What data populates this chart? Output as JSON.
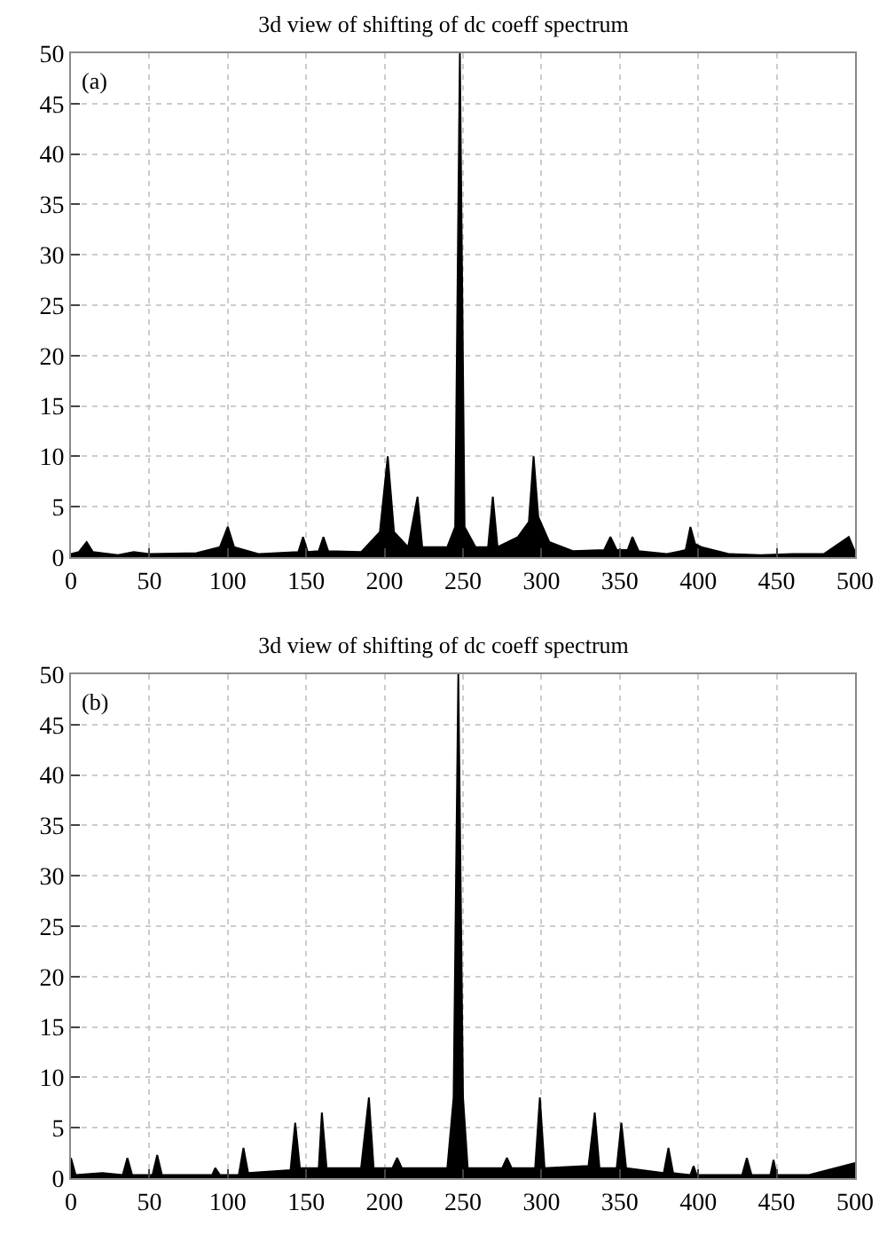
{
  "chart_data": [
    {
      "type": "area",
      "title": "3d view of shifting of dc coeff spectrum",
      "annotations": [
        "(a)"
      ],
      "xlim": [
        0,
        500
      ],
      "ylim": [
        0,
        50
      ],
      "xticks": [
        0,
        50,
        100,
        150,
        200,
        250,
        300,
        350,
        400,
        450,
        500
      ],
      "yticks": [
        0,
        5,
        10,
        15,
        20,
        25,
        30,
        35,
        40,
        45,
        50
      ],
      "grid": true,
      "series": [
        {
          "color": "#000000",
          "x": [
            0,
            5,
            10,
            14,
            30,
            40,
            50,
            80,
            95,
            100,
            104,
            120,
            145,
            148,
            151,
            158,
            161,
            164,
            185,
            197,
            202,
            206,
            215,
            221,
            224,
            240,
            245,
            248,
            251,
            258,
            266,
            269,
            272,
            285,
            292,
            295,
            298,
            305,
            320,
            340,
            344,
            348,
            355,
            358,
            362,
            380,
            392,
            395,
            398,
            402,
            420,
            440,
            460,
            480,
            496,
            500
          ],
          "values": [
            0.3,
            0.5,
            1.5,
            0.5,
            0.2,
            0.5,
            0.3,
            0.4,
            1,
            3,
            1,
            0.3,
            0.5,
            2,
            0.5,
            0.6,
            2,
            0.6,
            0.5,
            2.5,
            10,
            2.5,
            1,
            6,
            1,
            1,
            3,
            50,
            3,
            1,
            1,
            6,
            1,
            2,
            3.5,
            10,
            4,
            1.5,
            0.6,
            0.7,
            2,
            0.7,
            0.7,
            2,
            0.6,
            0.3,
            0.7,
            3,
            1.3,
            1,
            0.3,
            0.2,
            0.3,
            0.3,
            2,
            0.5
          ]
        }
      ]
    },
    {
      "type": "area",
      "title": "3d view of shifting of dc coeff spectrum",
      "annotations": [
        "(b)"
      ],
      "xlim": [
        0,
        500
      ],
      "ylim": [
        0,
        50
      ],
      "xticks": [
        0,
        50,
        100,
        150,
        200,
        250,
        300,
        350,
        400,
        450,
        500
      ],
      "yticks": [
        0,
        5,
        10,
        15,
        20,
        25,
        30,
        35,
        40,
        45,
        50
      ],
      "grid": true,
      "series": [
        {
          "color": "#000000",
          "x": [
            0,
            3,
            20,
            33,
            36,
            39,
            52,
            55,
            58,
            90,
            92,
            95,
            107,
            110,
            113,
            140,
            143,
            146,
            158,
            160,
            163,
            185,
            190,
            193,
            205,
            208,
            211,
            240,
            244,
            247,
            250,
            253,
            275,
            278,
            281,
            296,
            299,
            302,
            330,
            334,
            337,
            348,
            351,
            354,
            378,
            381,
            384,
            395,
            397,
            399,
            420,
            428,
            431,
            434,
            446,
            448,
            450,
            470,
            500
          ],
          "values": [
            2,
            0.3,
            0.5,
            0.3,
            2,
            0.3,
            0.3,
            2.3,
            0.3,
            0.3,
            1,
            0.3,
            0.3,
            3,
            0.5,
            0.8,
            5.5,
            1,
            1,
            6.5,
            1,
            1,
            8,
            1,
            1,
            2,
            1,
            1,
            8,
            50,
            8,
            1,
            1,
            2,
            1,
            1,
            8,
            1,
            1.2,
            6.5,
            1,
            1,
            5.5,
            1,
            0.5,
            3,
            0.5,
            0.3,
            1.2,
            0.3,
            0.3,
            0.3,
            2,
            0.3,
            0.3,
            1.8,
            0.3,
            0.3,
            1.5
          ]
        }
      ]
    }
  ]
}
